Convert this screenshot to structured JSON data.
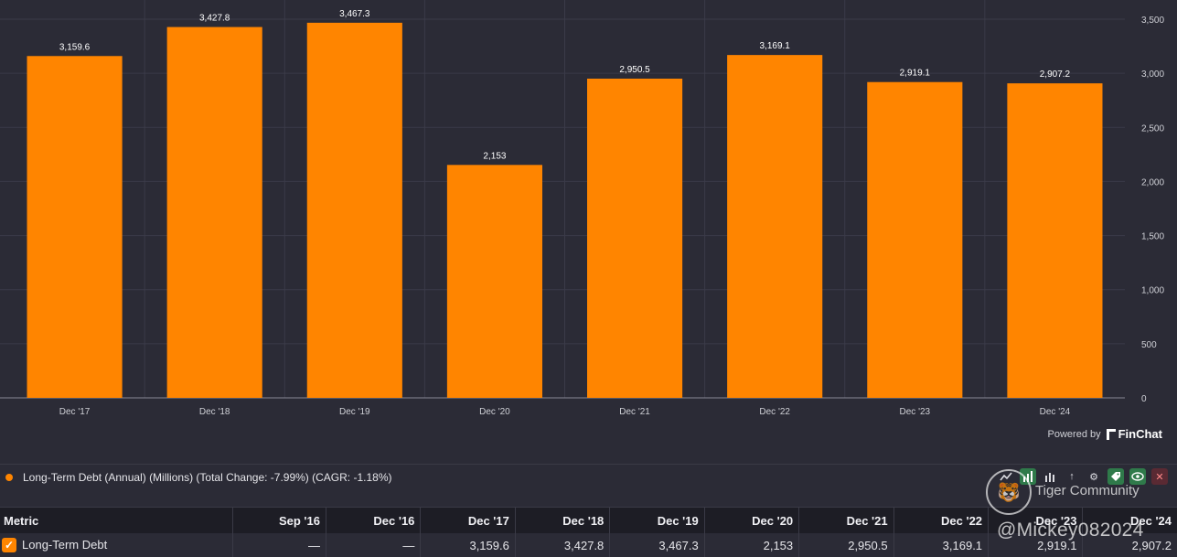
{
  "chart_data": {
    "type": "bar",
    "categories": [
      "Dec '17",
      "Dec '18",
      "Dec '19",
      "Dec '20",
      "Dec '21",
      "Dec '22",
      "Dec '23",
      "Dec '24"
    ],
    "values": [
      3159.6,
      3427.8,
      3467.3,
      2153,
      2950.5,
      3169.1,
      2919.1,
      2907.2
    ],
    "value_labels": [
      "3,159.6",
      "3,427.8",
      "3,467.3",
      "2,153",
      "2,950.5",
      "3,169.1",
      "2,919.1",
      "2,907.2"
    ],
    "yticks": [
      0,
      500,
      1000,
      1500,
      2000,
      2500,
      3000,
      3500
    ],
    "ytick_labels": [
      "0",
      "500",
      "1,000",
      "1,500",
      "2,000",
      "2,500",
      "3,000",
      "3,500"
    ],
    "ylim": [
      0,
      3500
    ],
    "color": "#ff8500",
    "grid": true,
    "title": "",
    "xlabel": "",
    "ylabel": ""
  },
  "branding": {
    "powered_by": "Powered by",
    "logo_text": "FinChat"
  },
  "legend": {
    "label": "Long-Term Debt (Annual) (Millions) (Total Change: -7.99%) (CAGR: -1.18%)",
    "color": "#ff8500"
  },
  "toolbar": {
    "icons": [
      "line-chart-icon",
      "bar-chart-icon",
      "grouped-bar-icon",
      "sort-icon",
      "gear-icon",
      "tag-icon",
      "eye-icon",
      "close-icon"
    ]
  },
  "table": {
    "headers": [
      "Metric",
      "Sep '16",
      "Dec '16",
      "Dec '17",
      "Dec '18",
      "Dec '19",
      "Dec '20",
      "Dec '21",
      "Dec '22",
      "Dec '23",
      "Dec '24"
    ],
    "rows": [
      {
        "cells": [
          "Long-Term Debt",
          "—",
          "—",
          "3,159.6",
          "3,427.8",
          "3,467.3",
          "2,153",
          "2,950.5",
          "3,169.1",
          "2,919.1",
          "2,907.2"
        ]
      }
    ]
  },
  "watermark": {
    "brand": "Tiger Community",
    "handle": "@Mickey082024"
  }
}
